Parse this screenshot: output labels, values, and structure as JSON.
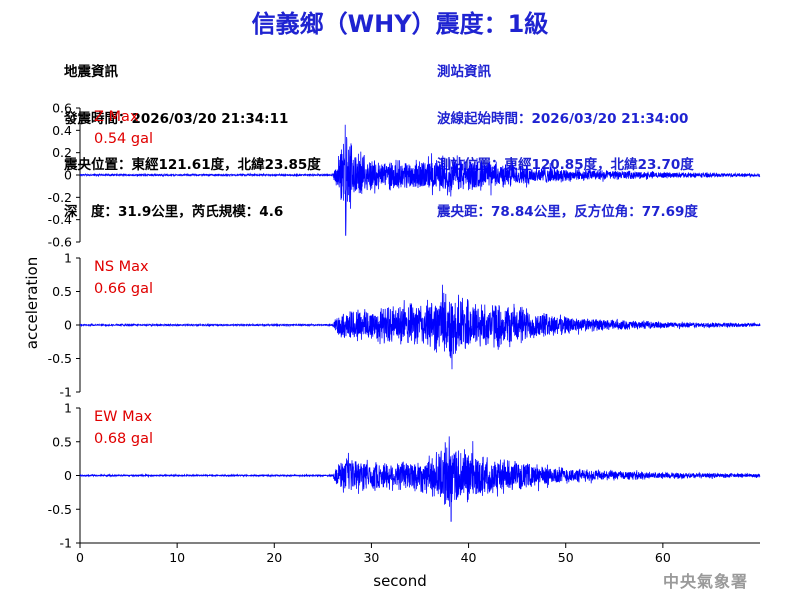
{
  "title": "信義鄉（WHY）震度：1級",
  "quake_info": {
    "heading": "地震資訊",
    "origin_time": "發震時間：2026/03/20 21:34:11",
    "epicenter": "震央位置：東經121.61度，北緯23.85度",
    "depth_magnitude": "深　度：31.9公里，芮氏規模：4.6"
  },
  "station_info": {
    "heading": "測站資訊",
    "record_start": "波線起始時間：2026/03/20 21:34:00",
    "location": "測站位置：東經120.85度，北緯23.70度",
    "distance_azimuth": "震央距：78.84公里，反方位角：77.69度"
  },
  "credit": "中央氣象署",
  "colors": {
    "title": "#1f23d1",
    "trace": "#0000ff",
    "max_label": "#e00000",
    "axis": "#000000"
  },
  "chart_data": [
    {
      "type": "line",
      "component": "Z",
      "max_label": "Z Max",
      "max_value": "0.54 gal",
      "ylim": [
        -0.6,
        0.6
      ],
      "yticks": [
        "0.6",
        "0.4",
        "0.2",
        "0",
        "-0.2",
        "-0.4",
        "-0.6"
      ],
      "xlim": [
        0,
        70
      ],
      "onset_s": 26.2,
      "envelope": [
        [
          0,
          0.008
        ],
        [
          26.0,
          0.008
        ],
        [
          26.3,
          0.1
        ],
        [
          27.0,
          0.3
        ],
        [
          27.3,
          0.5
        ],
        [
          28.5,
          0.2
        ],
        [
          31.0,
          0.14
        ],
        [
          37.5,
          0.15
        ],
        [
          38.5,
          0.18
        ],
        [
          45.0,
          0.1
        ],
        [
          52.0,
          0.055
        ],
        [
          60.0,
          0.03
        ],
        [
          70.0,
          0.015
        ]
      ],
      "peaks": [
        [
          27.3,
          0.45
        ],
        [
          27.35,
          -0.54
        ]
      ]
    },
    {
      "type": "line",
      "component": "NS",
      "max_label": "NS Max",
      "max_value": "0.66 gal",
      "ylim": [
        -1,
        1
      ],
      "yticks": [
        "1",
        "0.5",
        "0",
        "-0.5",
        "-1"
      ],
      "xlim": [
        0,
        70
      ],
      "onset_s": 26.2,
      "envelope": [
        [
          0,
          0.012
        ],
        [
          26.0,
          0.012
        ],
        [
          26.5,
          0.18
        ],
        [
          28.0,
          0.28
        ],
        [
          33.0,
          0.32
        ],
        [
          36.0,
          0.4
        ],
        [
          38.0,
          0.55
        ],
        [
          41.0,
          0.38
        ],
        [
          45.0,
          0.35
        ],
        [
          47.0,
          0.22
        ],
        [
          52.0,
          0.11
        ],
        [
          60.0,
          0.05
        ],
        [
          70.0,
          0.03
        ]
      ],
      "peaks": [
        [
          37.3,
          0.6
        ],
        [
          38.3,
          -0.66
        ]
      ]
    },
    {
      "type": "line",
      "component": "EW",
      "max_label": "EW Max",
      "max_value": "0.68 gal",
      "ylim": [
        -1,
        1
      ],
      "yticks": [
        "1",
        "0.5",
        "0",
        "-0.5",
        "-1"
      ],
      "xlim": [
        0,
        70
      ],
      "onset_s": 26.2,
      "envelope": [
        [
          0,
          0.012
        ],
        [
          26.0,
          0.012
        ],
        [
          26.5,
          0.2
        ],
        [
          27.5,
          0.28
        ],
        [
          31.0,
          0.22
        ],
        [
          36.0,
          0.3
        ],
        [
          38.0,
          0.55
        ],
        [
          41.0,
          0.35
        ],
        [
          45.0,
          0.22
        ],
        [
          52.0,
          0.1
        ],
        [
          60.0,
          0.05
        ],
        [
          70.0,
          0.03
        ]
      ],
      "peaks": [
        [
          38.0,
          0.58
        ],
        [
          38.2,
          -0.68
        ]
      ]
    }
  ],
  "axes": {
    "xlabel": "second",
    "ylabel": "acceleration",
    "xticks": [
      "0",
      "10",
      "20",
      "30",
      "40",
      "50",
      "60"
    ]
  }
}
